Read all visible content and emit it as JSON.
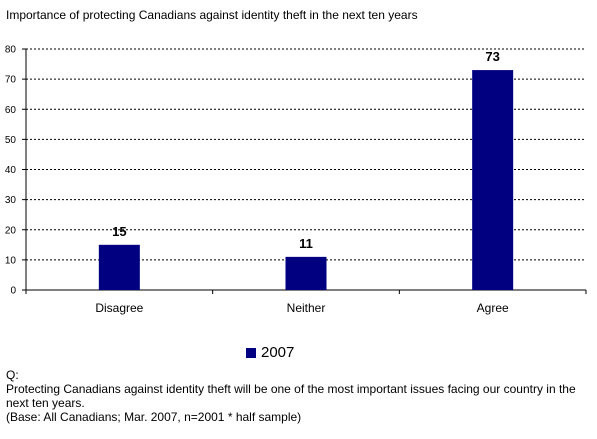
{
  "chart_data": {
    "type": "bar",
    "title": "Importance of protecting Canadians against identity theft in the next ten years",
    "categories": [
      "Disagree",
      "Neither",
      "Agree"
    ],
    "series": [
      {
        "name": "2007",
        "values": [
          15,
          11,
          73
        ],
        "color": "#000080"
      }
    ],
    "data_labels": [
      "15",
      "11",
      "73"
    ],
    "ylim": [
      0,
      80
    ],
    "yticks": [
      0,
      10,
      20,
      30,
      40,
      50,
      60,
      70,
      80
    ],
    "grid": true,
    "legend": "bottom-center",
    "xlabel": "",
    "ylabel": ""
  },
  "question": {
    "label": "Q:",
    "text": "Protecting Canadians against identity theft will be one of the most important issues facing our country in the next ten years.",
    "base": "(Base: All Canadians; Mar. 2007, n=2001 * half sample)"
  }
}
